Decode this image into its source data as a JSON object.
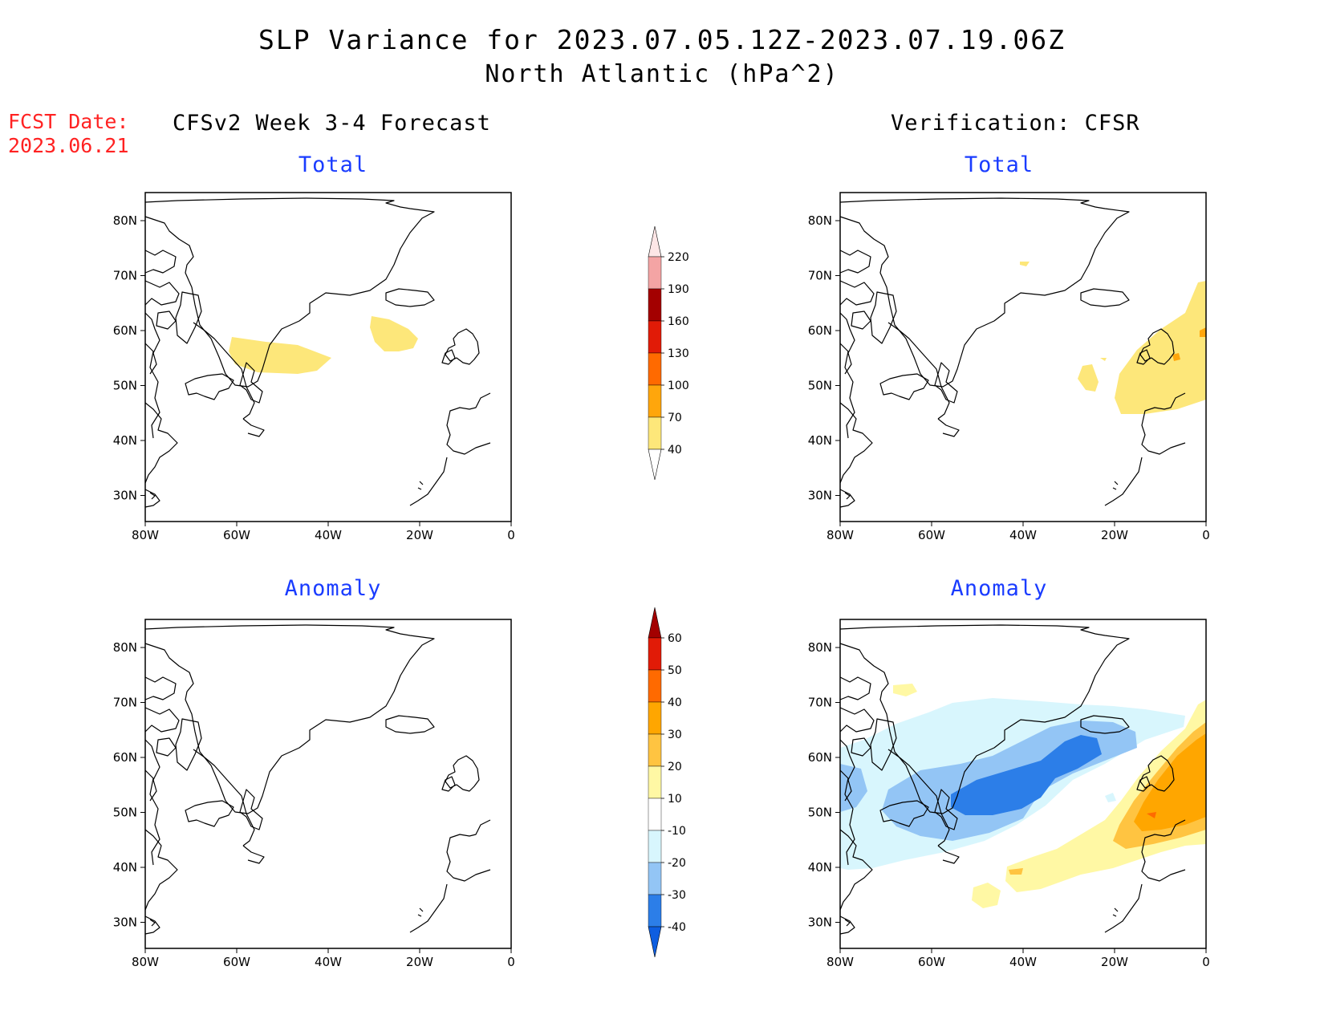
{
  "title_line1": "SLP Variance for 2023.07.05.12Z-2023.07.19.06Z",
  "title_line2": "North Atlantic (hPa^2)",
  "fcst_label": "FCST Date:",
  "fcst_date": "2023.06.21",
  "left_column_title": "CFSv2 Week 3-4 Forecast",
  "right_column_title": "Verification: CFSR",
  "panel_titles": {
    "total": "Total",
    "anomaly": "Anomaly"
  },
  "lon_ticks": [
    "80W",
    "60W",
    "40W",
    "20W",
    "0"
  ],
  "lat_ticks": [
    "80N",
    "70N",
    "60N",
    "50N",
    "40N",
    "30N"
  ],
  "total_colorbar": {
    "levels": [
      "40",
      "70",
      "100",
      "130",
      "160",
      "190",
      "220"
    ],
    "colors": [
      "#fde77a",
      "#ffa60c",
      "#ff6a00",
      "#e11b07",
      "#a30000",
      "#f4a4a4",
      "#fde6e6"
    ]
  },
  "anomaly_colorbar": {
    "levels": [
      "-40",
      "-30",
      "-20",
      "-10",
      "10",
      "20",
      "30",
      "40",
      "50",
      "60"
    ],
    "colors": [
      "#0e5ee0",
      "#2c7ee8",
      "#93c5f5",
      "#d8f6fd",
      "#ffffff",
      "#fff8a4",
      "#ffc441",
      "#ffa600",
      "#ff6a00",
      "#e11b07",
      "#a30000"
    ]
  },
  "map_colors": {
    "land_outline": "#000000",
    "variance_40_70": "#fde77a",
    "variance_70_100": "#ffa60c",
    "anom_10_20": "#fff8a4",
    "anom_20_30": "#ffc441",
    "anom_30_40": "#ffa600",
    "anom_m10_m20": "#d8f6fd",
    "anom_m20_m30": "#93c5f5",
    "anom_m30_m40": "#2c7ee8"
  }
}
